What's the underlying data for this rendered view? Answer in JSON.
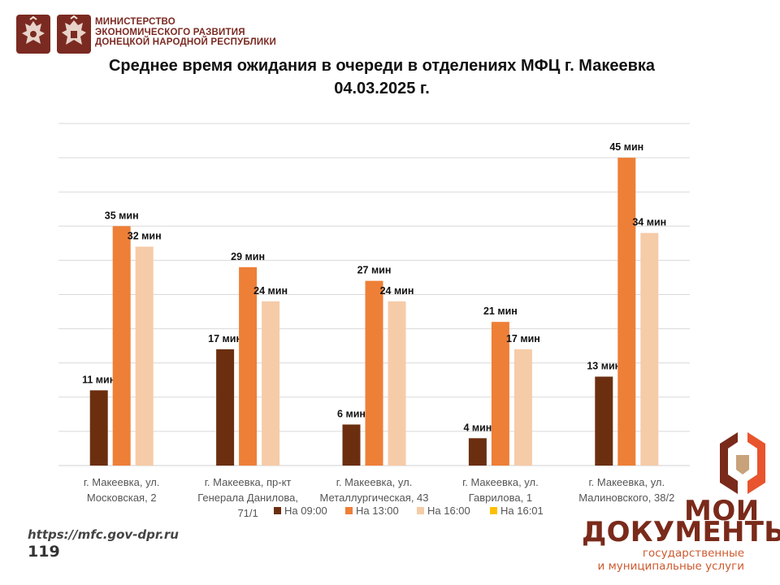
{
  "header": {
    "ministry_lines": [
      "МИНИСТЕРСТВО",
      "ЭКОНОМИЧЕСКОГО РАЗВИТИЯ",
      "ДОНЕЦКОЙ НАРОДНОЙ РЕСПУБЛИКИ"
    ]
  },
  "colors": {
    "series_0900": "#6b2f10",
    "series_1300": "#ee7f37",
    "series_1600": "#f6cba8",
    "series_1601": "#ffc000",
    "brand_dark": "#7a2a1a",
    "brand_accent": "#cd5a2f",
    "gridline": "#d9d9d9"
  },
  "chart_data": {
    "type": "bar",
    "title": "Среднее время ожидания в очереди в отделениях МФЦ г. Макеевка",
    "subtitle": "04.03.2025 г.",
    "categories": [
      "г. Макеевка, ул. Московская, 2",
      "г. Макеевка, пр-кт Генерала Данилова, 71/1",
      "г. Макеевка, ул. Металлургическая, 43",
      "г. Макеевка, ул. Гаврилова, 1",
      "г. Макеевка, ул. Малиновского, 38/2"
    ],
    "category_lines": [
      [
        "г. Макеевка, ул.",
        "Московская, 2"
      ],
      [
        "г. Макеевка, пр-кт",
        "Генерала Данилова,",
        "71/1"
      ],
      [
        "г. Макеевка, ул.",
        "Металлургическая, 43"
      ],
      [
        "г. Макеевка, ул.",
        "Гаврилова, 1"
      ],
      [
        "г. Макеевка, ул.",
        "Малиновского, 38/2"
      ]
    ],
    "series": [
      {
        "name": "На 09:00",
        "values": [
          11,
          17,
          6,
          4,
          13
        ],
        "labels": [
          "11 мин",
          "17 мин",
          "6 мин",
          "4 мин",
          "13 мин"
        ]
      },
      {
        "name": "На 13:00",
        "values": [
          35,
          29,
          27,
          21,
          45
        ],
        "labels": [
          "35 мин",
          "29 мин",
          "27 мин",
          "21 мин",
          "45 мин"
        ]
      },
      {
        "name": "На 16:00",
        "values": [
          32,
          24,
          24,
          17,
          34
        ],
        "labels": [
          "32 мин",
          "24 мин",
          "24 мин",
          "17 мин",
          "34 мин"
        ]
      },
      {
        "name": "На 16:01",
        "values": [
          null,
          null,
          null,
          null,
          null
        ],
        "labels": []
      }
    ],
    "ylim": [
      0,
      50
    ],
    "grid_step": 5,
    "grid": true,
    "y_axis_labels": false,
    "legend_position": "bottom"
  },
  "footer": {
    "url": "https://mfc.gov-dpr.ru",
    "page": "119"
  },
  "brand": {
    "line1": "МОИ",
    "line2": "ДОКУМЕНТЫ",
    "line3": "государственные",
    "line4": "и муниципальные услуги"
  }
}
